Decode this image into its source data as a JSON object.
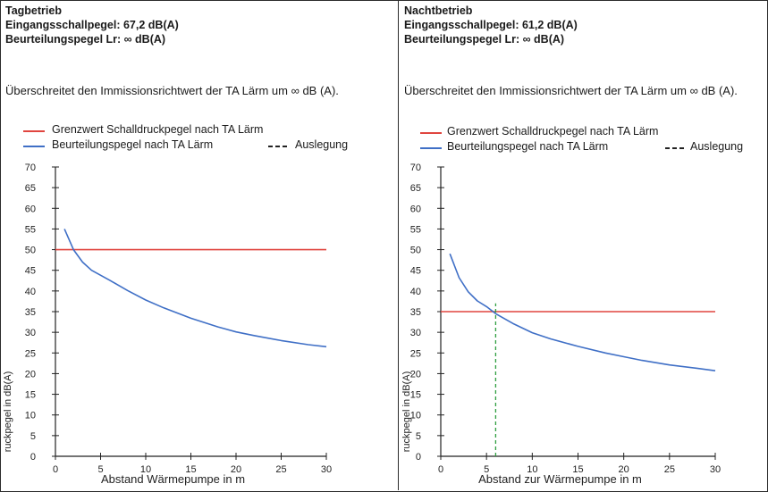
{
  "panels": [
    {
      "title": "Tagbetrieb",
      "input_level": "Eingangsschallpegel: 67,2 dB(A)",
      "rating_level": "Beurteilungspegel Lr: ∞ dB(A)",
      "description": "Überschreitet den Immissionsrichtwert der TA Lärm um ∞ dB (A).",
      "legend": {
        "limit": "Grenzwert Schalldruckpegel nach TA Lärm",
        "rating": "Beurteilungspegel nach TA Lärm",
        "design": "Auslegung"
      }
    },
    {
      "title": "Nachtbetrieb",
      "input_level": "Eingangsschallpegel: 61,2 dB(A)",
      "rating_level": "Beurteilungspegel Lr: ∞ dB(A)",
      "description": "Überschreitet den Immissionsrichtwert der TA Lärm um ∞ dB (A).",
      "legend": {
        "limit": "Grenzwert Schalldruckpegel nach TA Lärm",
        "rating": "Beurteilungspegel nach TA Lärm",
        "design": "Auslegung"
      }
    }
  ],
  "colors": {
    "limit": "#e0453f",
    "rating": "#3f6fc6",
    "design": "#2e9e3e"
  },
  "chart_data": [
    {
      "type": "line",
      "xlabel": "Abstand  Wärmepumpe in m",
      "ylabel": "ruckpegel in dB(A)",
      "xlim": [
        0,
        30
      ],
      "ylim": [
        0,
        70
      ],
      "xticks": [
        0,
        5,
        10,
        15,
        20,
        25,
        30
      ],
      "yticks": [
        0,
        5,
        10,
        15,
        20,
        25,
        30,
        35,
        40,
        45,
        50,
        55,
        60,
        65,
        70
      ],
      "grid": false,
      "series": [
        {
          "name": "Grenzwert Schalldruckpegel nach TA Lärm",
          "x": [
            0,
            30
          ],
          "y": [
            50,
            50
          ]
        },
        {
          "name": "Beurteilungspegel nach TA Lärm",
          "x": [
            1,
            2,
            3,
            4,
            6,
            8,
            10,
            12,
            15,
            18,
            20,
            22,
            25,
            28,
            30
          ],
          "y": [
            55,
            50,
            47,
            45,
            42.6,
            40.1,
            37.8,
            35.9,
            33.4,
            31.3,
            30.1,
            29.2,
            28,
            27,
            26.5
          ]
        }
      ]
    },
    {
      "type": "line",
      "xlabel": "Abstand zur Wärmepumpe in m",
      "ylabel": "ruckpegel in dB(A)",
      "xlim": [
        0,
        30
      ],
      "ylim": [
        0,
        70
      ],
      "xticks": [
        0,
        5,
        10,
        15,
        20,
        25,
        30
      ],
      "yticks": [
        0,
        5,
        10,
        15,
        20,
        25,
        30,
        35,
        40,
        45,
        50,
        55,
        60,
        65,
        70
      ],
      "grid": false,
      "series": [
        {
          "name": "Grenzwert Schalldruckpegel nach TA Lärm",
          "x": [
            0,
            30
          ],
          "y": [
            35,
            35
          ]
        },
        {
          "name": "Beurteilungspegel nach TA Lärm",
          "x": [
            1,
            2,
            3,
            4,
            5,
            6,
            8,
            10,
            12,
            15,
            18,
            20,
            22,
            25,
            28,
            30
          ],
          "y": [
            49,
            43.2,
            39.8,
            37.6,
            36.2,
            34.5,
            32,
            29.9,
            28.4,
            26.6,
            25,
            24.1,
            23.2,
            22.1,
            21.3,
            20.7
          ]
        },
        {
          "name": "Auslegung",
          "x": [
            6,
            6
          ],
          "y": [
            0,
            37
          ]
        }
      ]
    }
  ]
}
